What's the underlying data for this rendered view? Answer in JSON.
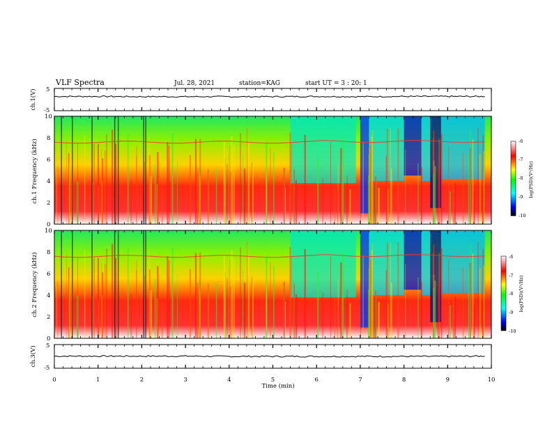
{
  "header": {
    "title": "VLF Spectra",
    "date": "Jul. 28, 2021",
    "station": "station=KAG",
    "start": "start UT =  3 : 20: 1"
  },
  "colors": {
    "spectrogram_scale": [
      "#ffffff",
      "#ff0000",
      "#ffff00",
      "#00ff00",
      "#00ffff",
      "#0000ff",
      "#000000"
    ]
  },
  "chart_data": [
    {
      "type": "line",
      "name": "ch1-voltage",
      "ylabel": "ch.1(V)",
      "ylim": [
        -5,
        5
      ],
      "yticks": [
        "5",
        "-5"
      ],
      "x": [
        0,
        1,
        2,
        3,
        4,
        5,
        6,
        7,
        8,
        9,
        9.85
      ],
      "y": [
        1.4,
        1.4,
        1.3,
        1.3,
        1.3,
        1.3,
        1.4,
        1.3,
        1.4,
        1.4,
        1.4
      ]
    },
    {
      "type": "heatmap",
      "name": "ch1-spectrogram",
      "ylabel": "ch.1 Frequency (kHz)",
      "ylim": [
        0,
        10
      ],
      "yticks": [
        "0",
        "2",
        "4",
        "6",
        "8",
        "10"
      ],
      "colorbar_label": "log(PSD)(V²/Hz)",
      "colorbar_ticks": [
        "-6",
        "-7",
        "-8",
        "-9",
        "-10"
      ]
    },
    {
      "type": "heatmap",
      "name": "ch2-spectrogram",
      "ylabel": "ch.2 Frequency (kHz)",
      "ylim": [
        0,
        10
      ],
      "yticks": [
        "0",
        "2",
        "4",
        "6",
        "8",
        "10"
      ],
      "colorbar_label": "log(PSD)(V²/Hz)",
      "colorbar_ticks": [
        "-6",
        "-7",
        "-8",
        "-9",
        "-10"
      ]
    },
    {
      "type": "line",
      "name": "ch3-voltage",
      "ylabel": "ch.3(V)",
      "ylim": [
        -5,
        5
      ],
      "yticks": [
        "5",
        "-5"
      ],
      "x": [
        0,
        1,
        2,
        3,
        4,
        5,
        6,
        7,
        8,
        9,
        9.85
      ],
      "y": [
        0.1,
        0.1,
        0.1,
        0.1,
        0.0,
        0.0,
        0.0,
        0.0,
        0.0,
        0.0,
        0.1
      ]
    }
  ],
  "xaxis": {
    "label": "Time (min)",
    "range": [
      0,
      10
    ],
    "ticks": [
      "0",
      "1",
      "2",
      "3",
      "4",
      "5",
      "6",
      "7",
      "8",
      "9",
      "10"
    ]
  }
}
